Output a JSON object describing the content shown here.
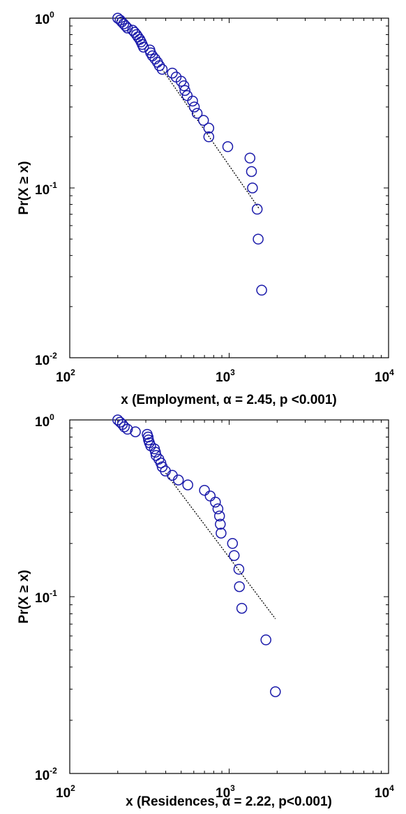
{
  "chart_data": [
    {
      "type": "scatter",
      "xscale": "log",
      "yscale": "log",
      "xlim": [
        100,
        10000
      ],
      "ylim": [
        0.01,
        1
      ],
      "xticks": [
        {
          "base": "10",
          "exp": "2"
        },
        {
          "base": "10",
          "exp": "3"
        },
        {
          "base": "10",
          "exp": "4"
        }
      ],
      "yticks": [
        {
          "base": "10",
          "exp": "0"
        },
        {
          "base": "10",
          "exp": "-1"
        },
        {
          "base": "10",
          "exp": "-2"
        }
      ],
      "xlabel": "x (Employment, α = 2.45, p <0.001)",
      "ylabel": "Pr(X ≥ x)",
      "grid": false,
      "marker_color": "#1a1aaa",
      "fit_color": "#000000",
      "points": [
        [
          200,
          1.0
        ],
        [
          207,
          0.975
        ],
        [
          212,
          0.95
        ],
        [
          218,
          0.925
        ],
        [
          224,
          0.9
        ],
        [
          230,
          0.875
        ],
        [
          248,
          0.85
        ],
        [
          255,
          0.825
        ],
        [
          262,
          0.8
        ],
        [
          268,
          0.775
        ],
        [
          275,
          0.75
        ],
        [
          280,
          0.725
        ],
        [
          285,
          0.7
        ],
        [
          290,
          0.675
        ],
        [
          318,
          0.65
        ],
        [
          322,
          0.625
        ],
        [
          330,
          0.6
        ],
        [
          343,
          0.575
        ],
        [
          355,
          0.55
        ],
        [
          365,
          0.525
        ],
        [
          380,
          0.5
        ],
        [
          440,
          0.475
        ],
        [
          465,
          0.45
        ],
        [
          500,
          0.425
        ],
        [
          520,
          0.4
        ],
        [
          528,
          0.375
        ],
        [
          545,
          0.35
        ],
        [
          590,
          0.325
        ],
        [
          605,
          0.3
        ],
        [
          630,
          0.275
        ],
        [
          690,
          0.25
        ],
        [
          745,
          0.225
        ],
        [
          745,
          0.2
        ],
        [
          980,
          0.175
        ],
        [
          1350,
          0.15
        ],
        [
          1380,
          0.125
        ],
        [
          1400,
          0.1
        ],
        [
          1500,
          0.075
        ],
        [
          1520,
          0.05
        ],
        [
          1600,
          0.025
        ]
      ],
      "fit": {
        "x": [
          380,
          1550
        ],
        "y": [
          0.5,
          0.075
        ]
      }
    },
    {
      "type": "scatter",
      "xscale": "log",
      "yscale": "log",
      "xlim": [
        100,
        10000
      ],
      "ylim": [
        0.01,
        1
      ],
      "xticks": [
        {
          "base": "10",
          "exp": "2"
        },
        {
          "base": "10",
          "exp": "3"
        },
        {
          "base": "10",
          "exp": "4"
        }
      ],
      "yticks": [
        {
          "base": "10",
          "exp": "0"
        },
        {
          "base": "10",
          "exp": "-1"
        },
        {
          "base": "10",
          "exp": "-2"
        }
      ],
      "xlabel": "x (Residences, α = 2.22, p<0.001)",
      "ylabel": "Pr(X ≥ x)",
      "grid": false,
      "marker_color": "#1a1aaa",
      "fit_color": "#000000",
      "points": [
        [
          200,
          1.0
        ],
        [
          207,
          0.971
        ],
        [
          214,
          0.943
        ],
        [
          220,
          0.914
        ],
        [
          230,
          0.886
        ],
        [
          258,
          0.857
        ],
        [
          306,
          0.829
        ],
        [
          310,
          0.8
        ],
        [
          312,
          0.771
        ],
        [
          316,
          0.743
        ],
        [
          322,
          0.714
        ],
        [
          340,
          0.686
        ],
        [
          345,
          0.657
        ],
        [
          348,
          0.629
        ],
        [
          362,
          0.6
        ],
        [
          373,
          0.571
        ],
        [
          380,
          0.543
        ],
        [
          398,
          0.514
        ],
        [
          440,
          0.486
        ],
        [
          480,
          0.457
        ],
        [
          550,
          0.429
        ],
        [
          700,
          0.4
        ],
        [
          760,
          0.371
        ],
        [
          820,
          0.343
        ],
        [
          850,
          0.314
        ],
        [
          870,
          0.286
        ],
        [
          880,
          0.257
        ],
        [
          890,
          0.229
        ],
        [
          1050,
          0.2
        ],
        [
          1075,
          0.171
        ],
        [
          1150,
          0.143
        ],
        [
          1160,
          0.114
        ],
        [
          1200,
          0.086
        ],
        [
          1700,
          0.057
        ],
        [
          1950,
          0.029
        ]
      ],
      "fit": {
        "x": [
          400,
          1950
        ],
        "y": [
          0.5,
          0.075
        ]
      }
    }
  ]
}
